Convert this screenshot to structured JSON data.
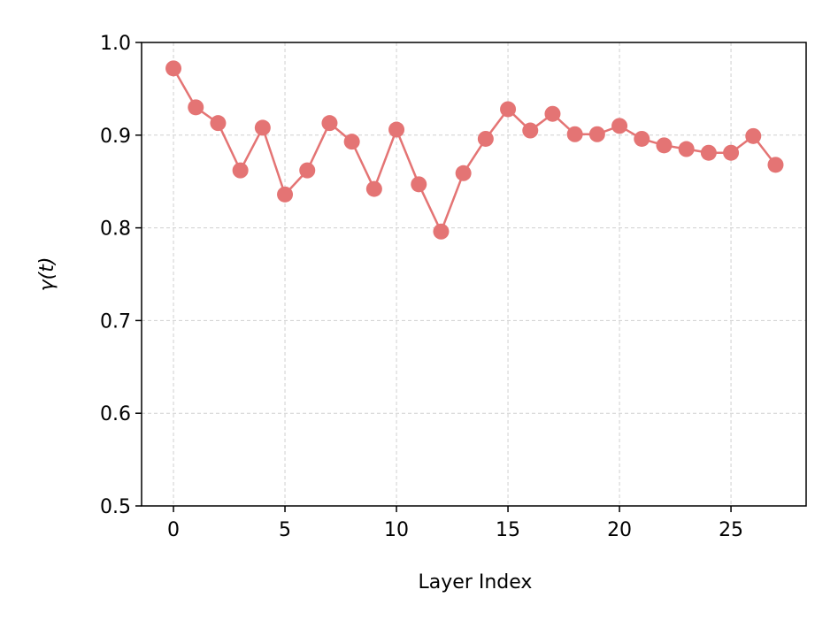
{
  "chart_data": {
    "type": "line",
    "xlabel": "Layer Index",
    "ylabel": "γ(t)",
    "x": [
      0,
      1,
      2,
      3,
      4,
      5,
      6,
      7,
      8,
      9,
      10,
      11,
      12,
      13,
      14,
      15,
      16,
      17,
      18,
      19,
      20,
      21,
      22,
      23,
      24,
      25,
      26,
      27
    ],
    "series": [
      {
        "color": "#e47474",
        "values": [
          0.972,
          0.93,
          0.913,
          0.862,
          0.908,
          0.836,
          0.862,
          0.913,
          0.893,
          0.842,
          0.906,
          0.847,
          0.796,
          0.859,
          0.896,
          0.928,
          0.905,
          0.923,
          0.901,
          0.901,
          0.91,
          0.896,
          0.889,
          0.885,
          0.881,
          0.881,
          0.899,
          0.868
        ]
      }
    ],
    "xlim": [
      -1.43,
      28.37
    ],
    "xticks": [
      0,
      5,
      10,
      15,
      20,
      25
    ],
    "ylim": [
      0.5,
      1.0
    ],
    "yticks": [
      0.5,
      0.6,
      0.7,
      0.8,
      0.9,
      {
        "value": 1.0,
        "label": "1.0"
      }
    ],
    "grid": true
  }
}
